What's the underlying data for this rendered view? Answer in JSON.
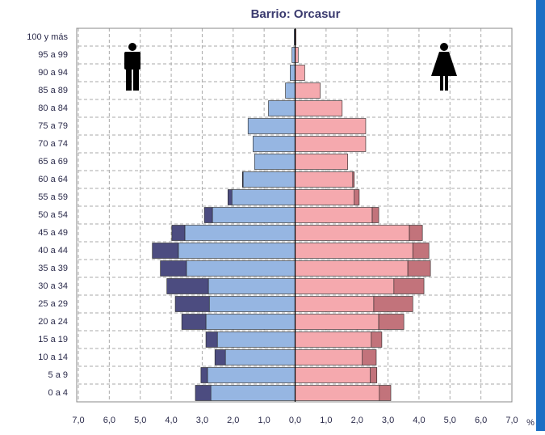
{
  "chart_data": {
    "type": "pyramid",
    "title": "Barrio: Orcasur",
    "x_label": "%",
    "categories": [
      "100 y más",
      "95 a 99",
      "90 a 94",
      "85 a 89",
      "80 a 84",
      "75 a 79",
      "70 a 74",
      "65 a 69",
      "60 a 64",
      "55 a 59",
      "50 a 54",
      "45 a 49",
      "40 a 44",
      "35 a 39",
      "30 a 34",
      "25 a 29",
      "20 a 24",
      "15 a 19",
      "10 a 14",
      "5 a 9",
      "0 a 4"
    ],
    "series": [
      {
        "color": "#96b6e2",
        "values": [
          -0.03,
          -0.1,
          -0.16,
          -0.31,
          -0.86,
          -1.52,
          -1.36,
          -1.31,
          -1.68,
          -2.04,
          -2.67,
          -3.56,
          -3.77,
          -3.51,
          -2.8,
          -2.77,
          -2.88,
          -2.51,
          -2.25,
          -2.83,
          -2.72
        ]
      },
      {
        "color": "#4c4c80",
        "values": [
          0,
          0,
          0,
          0,
          0,
          0,
          0,
          0,
          -0.02,
          -0.13,
          -0.26,
          -0.42,
          -0.84,
          -0.84,
          -1.34,
          -1.1,
          -0.78,
          -0.37,
          -0.34,
          -0.21,
          -0.5
        ]
      },
      {
        "color": "#f5a9ae",
        "values": [
          0.03,
          0.1,
          0.31,
          0.81,
          1.52,
          2.28,
          2.28,
          1.7,
          1.86,
          1.91,
          2.49,
          3.69,
          3.8,
          3.64,
          3.19,
          2.54,
          2.7,
          2.46,
          2.17,
          2.43,
          2.72
        ]
      },
      {
        "color": "#c2737b",
        "values": [
          0,
          0,
          0,
          0,
          0,
          0,
          0,
          0,
          0.05,
          0.16,
          0.21,
          0.42,
          0.52,
          0.73,
          0.97,
          1.26,
          0.81,
          0.34,
          0.45,
          0.21,
          0.37
        ]
      }
    ],
    "xlim": [
      -7,
      7
    ],
    "xticks": [
      {
        "value": -7,
        "label": "7,0"
      },
      {
        "value": -6,
        "label": "6,0"
      },
      {
        "value": -5,
        "label": "5,0"
      },
      {
        "value": -4,
        "label": "4,0"
      },
      {
        "value": -3,
        "label": "3,0"
      },
      {
        "value": -2,
        "label": "2,0"
      },
      {
        "value": -1,
        "label": "1,0"
      },
      {
        "value": 0,
        "label": "0,0"
      },
      {
        "value": 1,
        "label": "1,0"
      },
      {
        "value": 2,
        "label": "2,0"
      },
      {
        "value": 3,
        "label": "3,0"
      },
      {
        "value": 4,
        "label": "4,0"
      },
      {
        "value": 5,
        "label": "5,0"
      },
      {
        "value": 6,
        "label": "6,0"
      },
      {
        "value": 7,
        "label": "7,0"
      }
    ],
    "grid": true
  }
}
